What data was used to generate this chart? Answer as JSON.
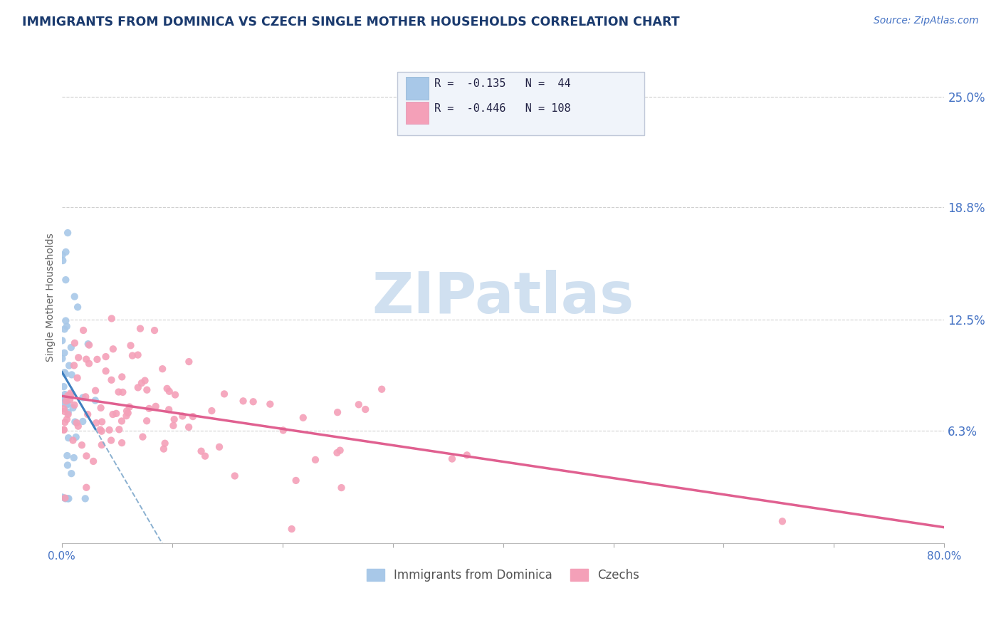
{
  "title": "IMMIGRANTS FROM DOMINICA VS CZECH SINGLE MOTHER HOUSEHOLDS CORRELATION CHART",
  "source": "Source: ZipAtlas.com",
  "ylabel": "Single Mother Households",
  "ytick_labels": [
    "6.3%",
    "12.5%",
    "18.8%",
    "25.0%"
  ],
  "ytick_values": [
    0.063,
    0.125,
    0.188,
    0.25
  ],
  "xlim": [
    0.0,
    0.8
  ],
  "ylim": [
    0.0,
    0.275
  ],
  "legend_label1": "Immigrants from Dominica",
  "legend_label2": "Czechs",
  "color_blue": "#a8c8e8",
  "color_pink": "#f4a0b8",
  "color_blue_line": "#4080c0",
  "color_pink_line": "#e06090",
  "color_dash": "#8ab0d0",
  "watermark": "ZIPatlas",
  "watermark_color": "#d0e0f0",
  "title_color": "#1a3a6e",
  "source_color": "#4472c4",
  "tick_color": "#4472c4",
  "ylabel_color": "#666666",
  "grid_color": "#d0d0d0",
  "bottom_tick_color": "#aaaaaa",
  "legend_r1": "R =  -0.135   N =  44",
  "legend_r2": "R =  -0.446   N = 108"
}
